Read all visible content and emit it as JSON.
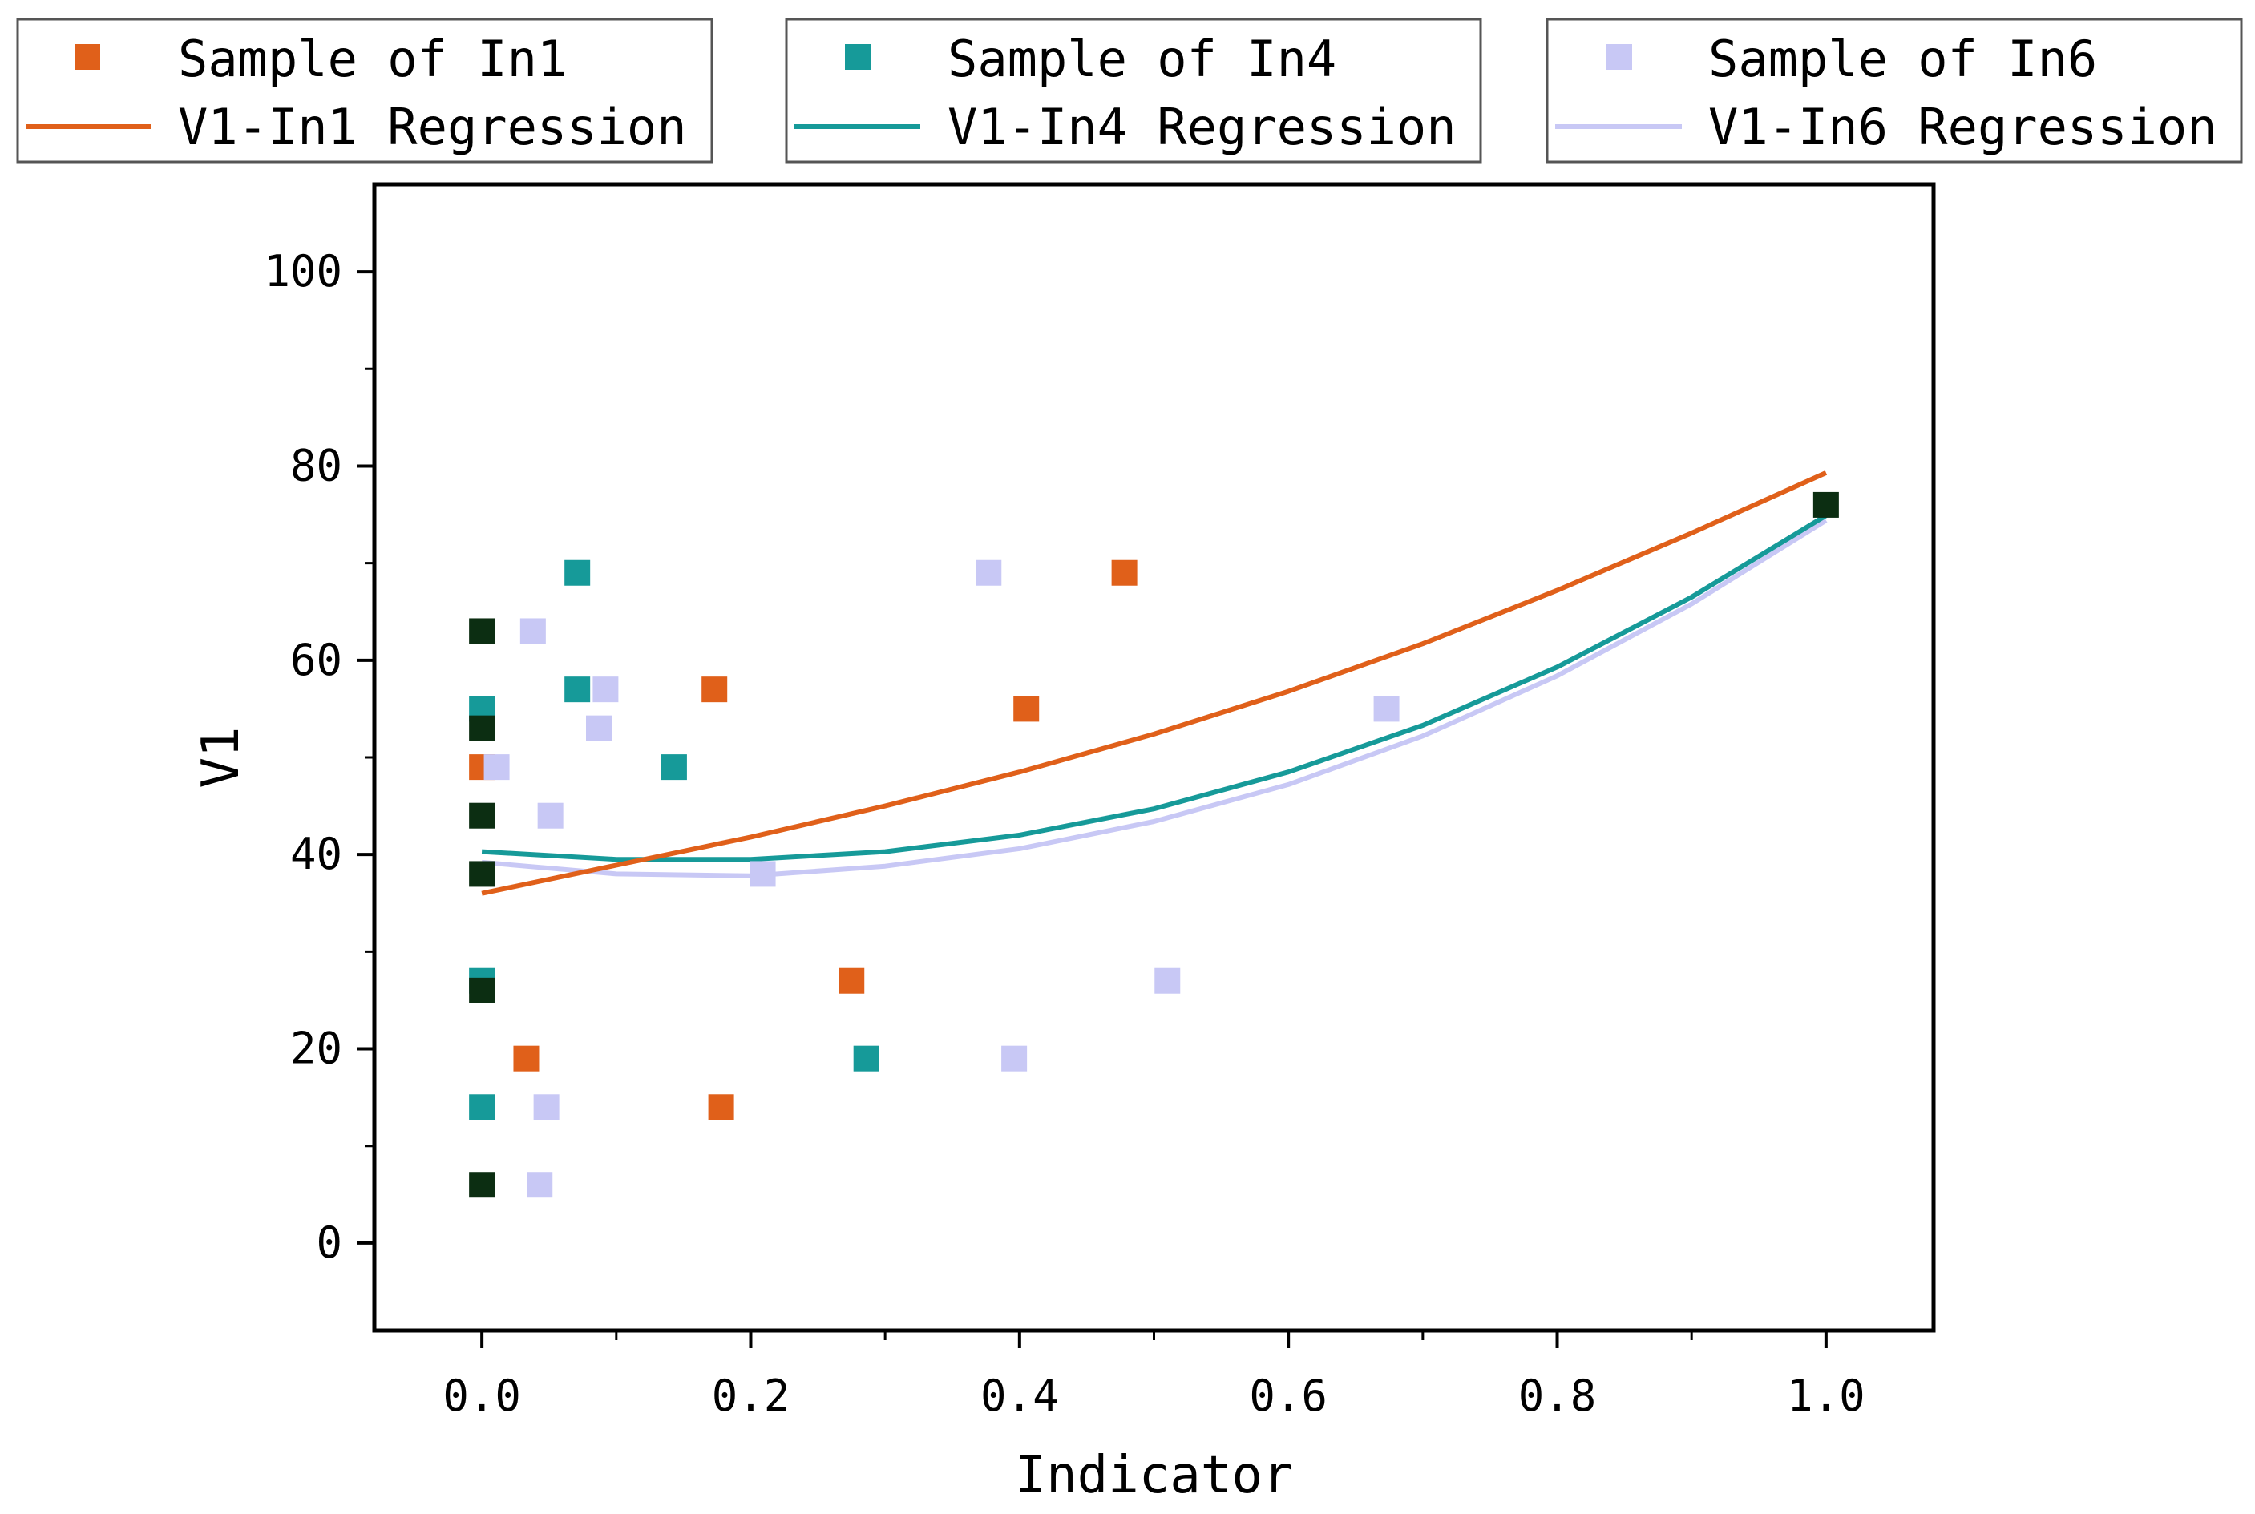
{
  "chart_data": {
    "type": "scatter",
    "xlabel": "Indicator",
    "ylabel": "V1",
    "xlim": [
      -0.08,
      1.08
    ],
    "ylim": [
      -9,
      109
    ],
    "x_ticks": [
      0.0,
      0.2,
      0.4,
      0.6,
      0.8,
      1.0
    ],
    "x_tick_labels": [
      "0.0",
      "0.2",
      "0.4",
      "0.6",
      "0.8",
      "1.0"
    ],
    "y_ticks": [
      0,
      20,
      40,
      60,
      80,
      100
    ],
    "y_tick_labels": [
      "0",
      "20",
      "40",
      "60",
      "80",
      "100"
    ],
    "legend_placement": "top, three boxes",
    "series": [
      {
        "name": "Sample of In1",
        "line_name": "V1-In1 Regression",
        "color": "#e0601a",
        "points": [
          [
            0.0,
            49
          ],
          [
            0.033,
            19
          ],
          [
            0.173,
            57
          ],
          [
            0.178,
            14
          ],
          [
            0.275,
            27
          ],
          [
            0.405,
            55
          ],
          [
            0.478,
            69
          ]
        ],
        "regression": [
          [
            0.0,
            36.0
          ],
          [
            0.1,
            38.9
          ],
          [
            0.2,
            41.8
          ],
          [
            0.3,
            45.0
          ],
          [
            0.4,
            48.5
          ],
          [
            0.5,
            52.4
          ],
          [
            0.6,
            56.8
          ],
          [
            0.7,
            61.7
          ],
          [
            0.8,
            67.2
          ],
          [
            0.9,
            73.1
          ],
          [
            1.0,
            79.3
          ]
        ]
      },
      {
        "name": "Sample of In4",
        "line_name": "V1-In4 Regression",
        "color": "#169a99",
        "points": [
          [
            0.0,
            55
          ],
          [
            0.0,
            27
          ],
          [
            0.0,
            14
          ],
          [
            0.071,
            69
          ],
          [
            0.071,
            57
          ],
          [
            0.143,
            49
          ],
          [
            0.286,
            19
          ]
        ],
        "regression": [
          [
            0.0,
            40.3
          ],
          [
            0.1,
            39.5
          ],
          [
            0.2,
            39.5
          ],
          [
            0.3,
            40.3
          ],
          [
            0.4,
            42.0
          ],
          [
            0.5,
            44.7
          ],
          [
            0.6,
            48.5
          ],
          [
            0.7,
            53.3
          ],
          [
            0.8,
            59.3
          ],
          [
            0.9,
            66.5
          ],
          [
            1.0,
            74.9
          ]
        ]
      },
      {
        "name": "Sample of In6",
        "line_name": "V1-In6 Regression",
        "color": "#c8c8f5",
        "points": [
          [
            0.011,
            49
          ],
          [
            0.038,
            63
          ],
          [
            0.043,
            6
          ],
          [
            0.048,
            14
          ],
          [
            0.051,
            44
          ],
          [
            0.087,
            53
          ],
          [
            0.092,
            57
          ],
          [
            0.209,
            38
          ],
          [
            0.377,
            69
          ],
          [
            0.396,
            19
          ],
          [
            0.51,
            27
          ],
          [
            0.673,
            55
          ]
        ],
        "regression": [
          [
            0.0,
            39.2
          ],
          [
            0.1,
            38.0
          ],
          [
            0.2,
            37.8
          ],
          [
            0.3,
            38.8
          ],
          [
            0.4,
            40.6
          ],
          [
            0.5,
            43.4
          ],
          [
            0.6,
            47.2
          ],
          [
            0.7,
            52.2
          ],
          [
            0.8,
            58.4
          ],
          [
            0.9,
            65.8
          ],
          [
            1.0,
            74.4
          ]
        ]
      }
    ],
    "overlap_points": {
      "color": "#0c2e12",
      "points": [
        [
          0.0,
          63
        ],
        [
          0.0,
          53
        ],
        [
          0.0,
          44
        ],
        [
          0.0,
          38
        ],
        [
          0.0,
          26
        ],
        [
          0.0,
          6
        ],
        [
          1.0,
          76
        ]
      ]
    }
  }
}
